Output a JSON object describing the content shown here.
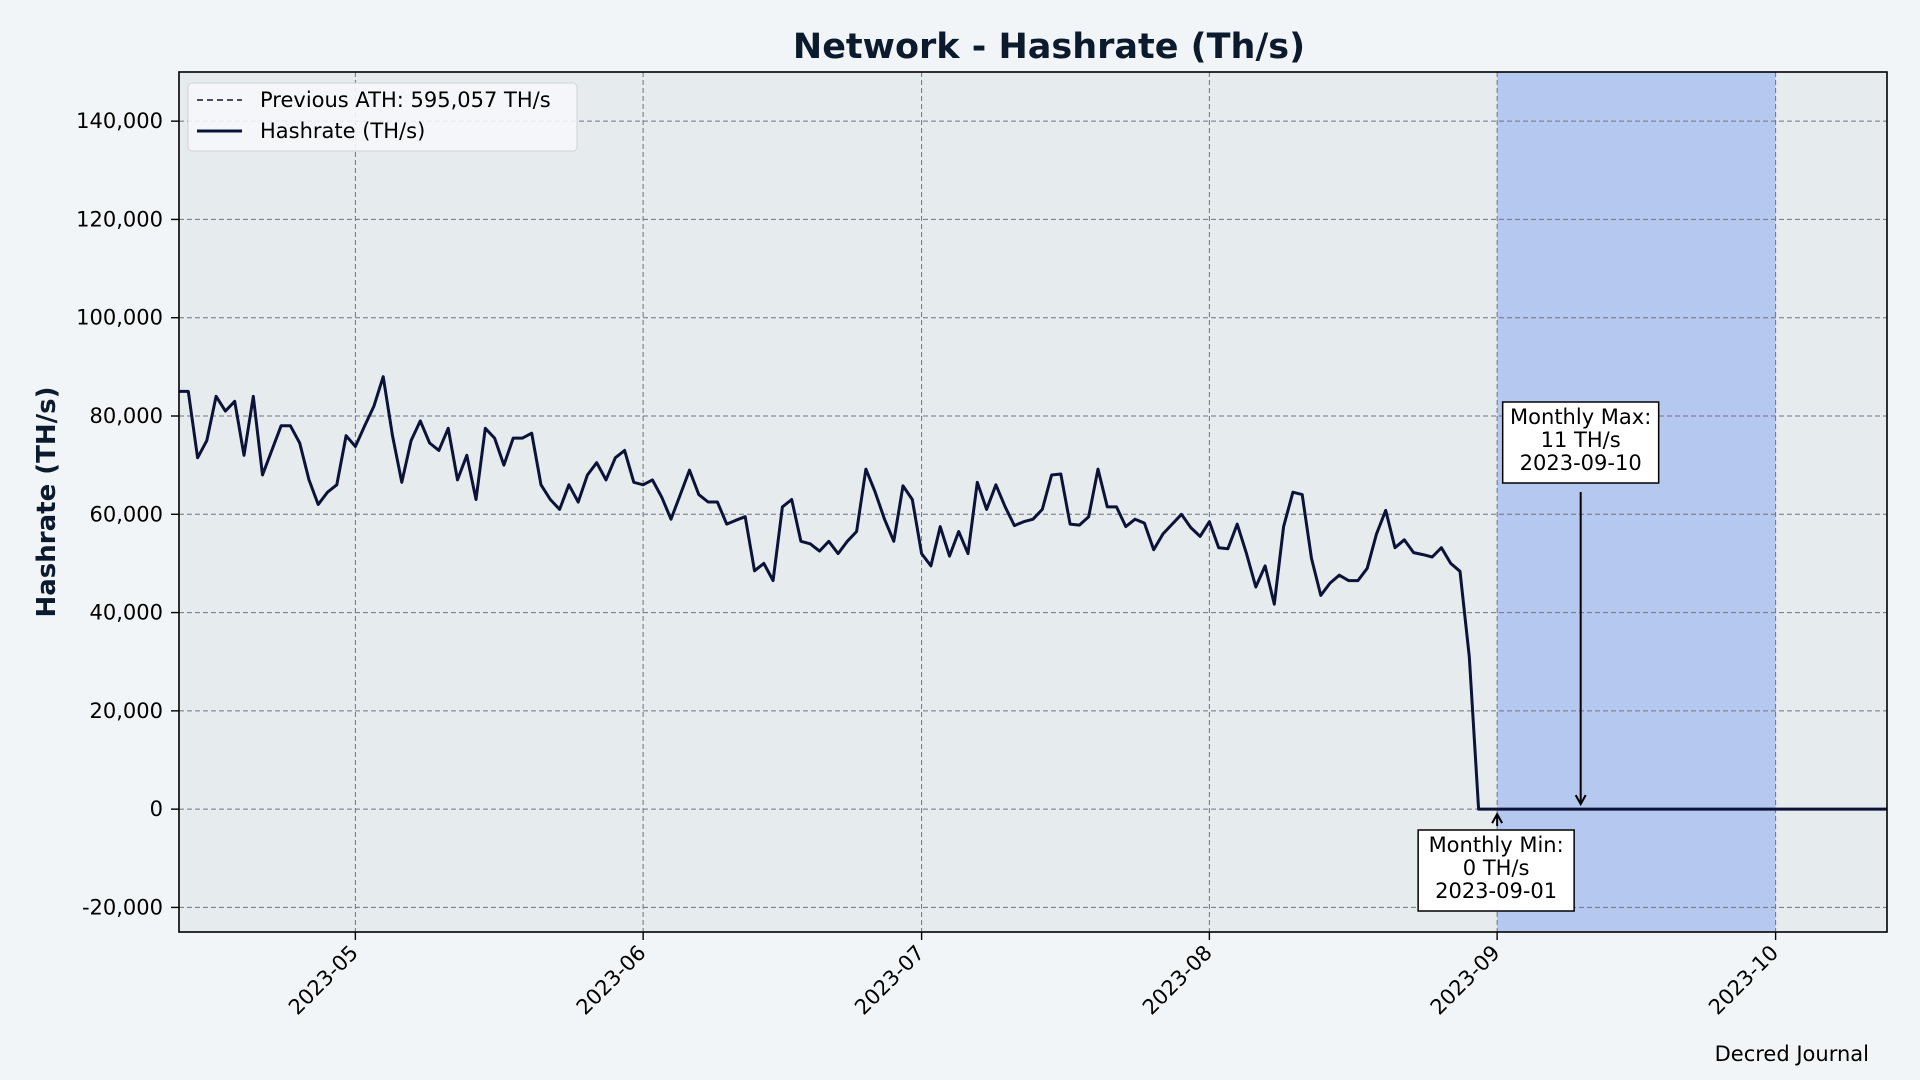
{
  "chart_data": {
    "type": "line",
    "title": "Network - Hashrate (Th/s)",
    "xlabel": "",
    "ylabel": "Hashrate (TH/s)",
    "xlim": [
      "2023-04-12",
      "2023-10-13"
    ],
    "ylim": [
      -25000,
      150000
    ],
    "yticks": [
      -20000,
      0,
      20000,
      40000,
      60000,
      80000,
      100000,
      120000,
      140000
    ],
    "ytick_labels": [
      "-20,000",
      "0",
      "20,000",
      "40,000",
      "60,000",
      "80,000",
      "100,000",
      "120,000",
      "140,000"
    ],
    "xticks": [
      "2023-05-01",
      "2023-06-01",
      "2023-07-01",
      "2023-08-01",
      "2023-09-01",
      "2023-10-01"
    ],
    "xtick_labels": [
      "2023-05",
      "2023-06",
      "2023-07",
      "2023-08",
      "2023-09",
      "2023-10"
    ],
    "grid": true,
    "legend_position": "top-left",
    "legend": [
      {
        "label": "Previous ATH: 595,057 TH/s",
        "style": "dashed"
      },
      {
        "label": "Hashrate (TH/s)",
        "style": "solid"
      }
    ],
    "highlight_span": {
      "start": "2023-09-01",
      "end": "2023-10-01",
      "color": "#b4c8f0"
    },
    "annotations": [
      {
        "lines": [
          "Monthly Max:",
          "11 TH/s",
          "2023-09-10"
        ],
        "x": "2023-09-10",
        "y": 11
      },
      {
        "lines": [
          "Monthly Min:",
          "0 TH/s",
          "2023-09-01"
        ],
        "x": "2023-09-01",
        "y": 0
      }
    ],
    "series": [
      {
        "name": "Hashrate (TH/s)",
        "color": "#0c1238",
        "start_date": "2023-04-12",
        "values": [
          85000,
          85000,
          71500,
          75000,
          84000,
          81000,
          83000,
          72000,
          84000,
          68000,
          73000,
          78000,
          78000,
          74500,
          67000,
          62000,
          64500,
          66000,
          76000,
          73800,
          78000,
          82000,
          88000,
          76000,
          66500,
          75000,
          79000,
          74500,
          73000,
          77500,
          67000,
          72000,
          63000,
          77500,
          75500,
          70000,
          75500,
          75500,
          76500,
          66000,
          63000,
          61000,
          66000,
          62500,
          68000,
          70500,
          67000,
          71500,
          73000,
          66500,
          66000,
          67000,
          63500,
          59000,
          64000,
          69000,
          64000,
          62500,
          62500,
          58000,
          58800,
          59500,
          48500,
          50000,
          46500,
          61500,
          63000,
          54500,
          54000,
          52500,
          54500,
          52000,
          54500,
          56500,
          69200,
          64500,
          59000,
          54500,
          65800,
          63000,
          52000,
          49500,
          57500,
          51500,
          56500,
          52000,
          66500,
          61000,
          66000,
          61500,
          57700,
          58500,
          59000,
          61000,
          68000,
          68200,
          58000,
          57800,
          59500,
          69200,
          61500,
          61500,
          57500,
          59000,
          58200,
          52800,
          56000,
          58000,
          60000,
          57300,
          55500,
          58500,
          53200,
          53000,
          58000,
          52000,
          45200,
          49500,
          41700,
          57500,
          64500,
          64000,
          51000,
          43500,
          46000,
          47600,
          46500,
          46500,
          49000,
          56000,
          60800,
          53200,
          54800,
          52200,
          51800,
          51300,
          53200,
          50000,
          48400,
          31000,
          0,
          0,
          0,
          0,
          0,
          0,
          0,
          0,
          0,
          0,
          11,
          0,
          0,
          0,
          0,
          0,
          0,
          0,
          0,
          0,
          0,
          0,
          0,
          0,
          0,
          0,
          0,
          0,
          0,
          0,
          0,
          0,
          0,
          0,
          0,
          0,
          0,
          0,
          0,
          0,
          0,
          0,
          0,
          0,
          0
        ]
      }
    ]
  },
  "footer": {
    "credit": "Decred Journal"
  },
  "colors": {
    "page_bg": "#f2f5f7",
    "plot_bg": "#e6ebee",
    "line": "#0c1238",
    "grid": "#6f7480",
    "span": "#b4c8f0",
    "text": "#0b1a2c"
  }
}
